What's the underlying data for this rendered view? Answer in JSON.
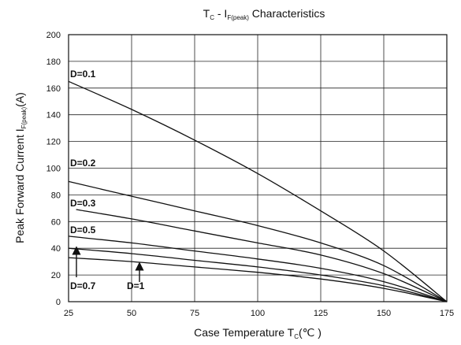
{
  "chart_data": {
    "type": "line",
    "title": {
      "main_a": "T",
      "sub_a": "C",
      "main_b": " - I",
      "sub_b": "F(peak)",
      "main_c": " Characteristics"
    },
    "xlabel": {
      "main": "Case Temperature T",
      "sub": "C",
      "tail": "(℃ )"
    },
    "ylabel": {
      "main_a": "Peak Forward Current I",
      "sub": "F(peak)",
      "main_b": "(A)"
    },
    "xlim": [
      25,
      175
    ],
    "ylim": [
      0,
      200
    ],
    "xticks": [
      25,
      50,
      75,
      100,
      125,
      150,
      175
    ],
    "yticks": [
      0,
      20,
      40,
      60,
      80,
      100,
      120,
      140,
      160,
      180,
      200
    ],
    "grid": true,
    "series": [
      {
        "name": "D=0.1",
        "x": [
          25,
          50,
          75,
          100,
          125,
          150,
          175
        ],
        "y": [
          165,
          144,
          121,
          96,
          68,
          38,
          0
        ]
      },
      {
        "name": "D=0.2",
        "x": [
          25,
          50,
          75,
          100,
          125,
          150,
          175
        ],
        "y": [
          90,
          79,
          68,
          57,
          44,
          27,
          0
        ]
      },
      {
        "name": "D=0.3",
        "x": [
          28,
          50,
          75,
          100,
          125,
          150,
          175
        ],
        "y": [
          69,
          62,
          53,
          44,
          35,
          21,
          0
        ]
      },
      {
        "name": "D=0.5",
        "x": [
          25,
          50,
          75,
          100,
          125,
          150,
          175
        ],
        "y": [
          49,
          44,
          38,
          32,
          25,
          15,
          0
        ]
      },
      {
        "name": "D=0.7",
        "x": [
          25,
          50,
          75,
          100,
          125,
          150,
          175
        ],
        "y": [
          40,
          36,
          31,
          26,
          20,
          12,
          0
        ]
      },
      {
        "name": "D=1",
        "x": [
          25,
          50,
          75,
          100,
          125,
          150,
          175
        ],
        "y": [
          33,
          30,
          26,
          22,
          17,
          10,
          0
        ]
      }
    ]
  }
}
